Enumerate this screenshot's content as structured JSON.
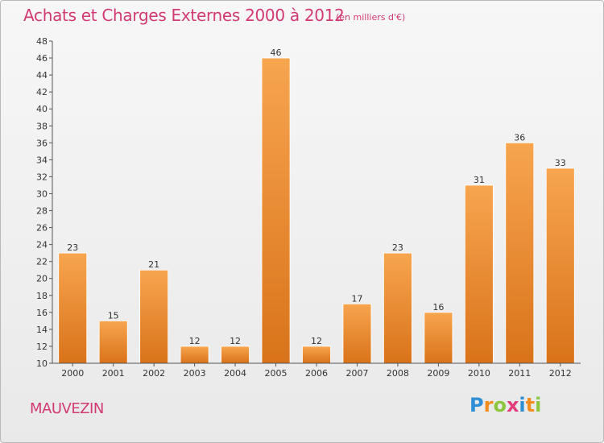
{
  "header": {
    "title": "Achats et Charges Externes 2000 à 2012",
    "subtitle": "(en milliers d'€)"
  },
  "place": "MAUVEZIN",
  "logo": {
    "text": "Proxiti",
    "letters": [
      {
        "ch": "P",
        "color": "#2f8fd6"
      },
      {
        "ch": "r",
        "color": "#f28c1c"
      },
      {
        "ch": "o",
        "color": "#8cc63f"
      },
      {
        "ch": "x",
        "color": "#e23c7d"
      },
      {
        "ch": "i",
        "color": "#2f8fd6"
      },
      {
        "ch": "t",
        "color": "#f28c1c"
      },
      {
        "ch": "i",
        "color": "#8cc63f"
      }
    ]
  },
  "colors": {
    "title": "#d23a74",
    "bar_top": "#f7a54f",
    "bar_bottom": "#d9731a",
    "axis": "#555555"
  },
  "chart_data": {
    "type": "bar",
    "title": "Achats et Charges Externes 2000 à 2012",
    "subtitle": "(en milliers d'€)",
    "xlabel": "",
    "ylabel": "",
    "categories": [
      "2000",
      "2001",
      "2002",
      "2003",
      "2004",
      "2005",
      "2006",
      "2007",
      "2008",
      "2009",
      "2010",
      "2011",
      "2012"
    ],
    "values": [
      23,
      15,
      21,
      12,
      12,
      46,
      12,
      17,
      23,
      16,
      31,
      36,
      33
    ],
    "ylim": [
      10,
      48
    ],
    "yticks": [
      10,
      12,
      14,
      16,
      18,
      20,
      22,
      24,
      26,
      28,
      30,
      32,
      34,
      36,
      38,
      40,
      42,
      44,
      46,
      48
    ],
    "grid": false,
    "legend": "none"
  }
}
